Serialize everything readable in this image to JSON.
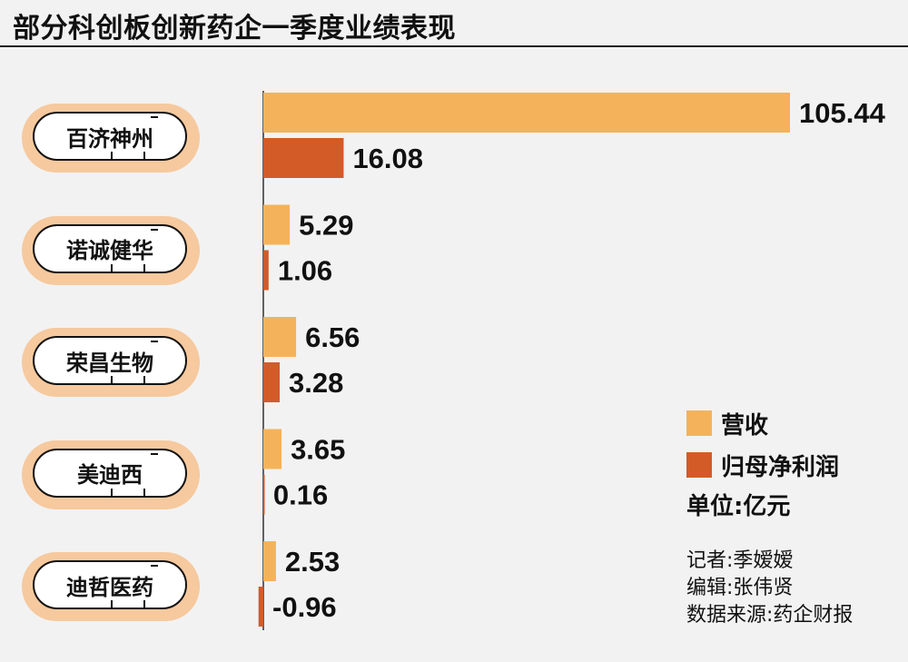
{
  "title": "部分科创板创新药企一季度业绩表现",
  "legend": {
    "revenue_label": "营收",
    "profit_label": "归母净利润",
    "unit": "单位:亿元"
  },
  "credits": {
    "reporter": "记者:季嫒嫒",
    "editor": "编辑:张伟贤",
    "source": "数据来源:药企财报"
  },
  "colors": {
    "revenue": "#f4b35a",
    "profit": "#d35b28",
    "pill_outer": "#f6c99e",
    "axis": "#333333"
  },
  "chart_data": {
    "type": "bar",
    "orientation": "horizontal",
    "unit": "亿元",
    "categories": [
      "百济神州",
      "诺诚健华",
      "荣昌生物",
      "美迪西",
      "迪哲医药"
    ],
    "series": [
      {
        "name": "营收",
        "values": [
          105.44,
          5.29,
          6.56,
          3.65,
          2.53
        ]
      },
      {
        "name": "归母净利润",
        "values": [
          16.08,
          1.06,
          3.28,
          0.16,
          -0.96
        ]
      }
    ],
    "value_labels": {
      "营收": [
        "105.44",
        "5.29",
        "6.56",
        "3.65",
        "2.53"
      ],
      "归母净利润": [
        "16.08",
        "1.06",
        "3.28",
        "0.16",
        "-0.96"
      ]
    },
    "legend_position": "right",
    "grid": false
  }
}
